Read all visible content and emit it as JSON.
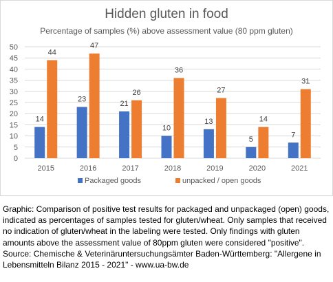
{
  "chart_data": {
    "type": "bar",
    "title": "Hidden gluten in food",
    "subtitle": "Percentage of samples (%) above assessment value (80 ppm gluten)",
    "categories": [
      "2015",
      "2016",
      "2017",
      "2018",
      "2019",
      "2020",
      "2021"
    ],
    "series": [
      {
        "name": "Packaged goods",
        "color": "#4472c4",
        "values": [
          14,
          23,
          21,
          10,
          13,
          5,
          7
        ]
      },
      {
        "name": "unpacked / open goods",
        "color": "#ed7d31",
        "values": [
          44,
          47,
          26,
          36,
          27,
          14,
          31
        ]
      }
    ],
    "ylim": [
      0,
      50
    ],
    "yticks": [
      0,
      5,
      10,
      15,
      20,
      25,
      30,
      35,
      40,
      45,
      50
    ],
    "grid": true,
    "legend": "bottom",
    "data_labels": true
  },
  "caption": "Graphic: Comparison of positive test results for packaged and unpackaged (open) goods, indicated as percentages of samples tested for gluten/wheat. Only samples that received no indication of gluten/wheat in the labeling were tested. Only findings with gluten amounts above the assessment value of 80ppm gluten were considered \"positive\". Source: Chemische & Veterinäruntersuchungsämter Baden-Württemberg: \"Allergene in Lebensmitteln Bilanz 2015 - 2021\" - www.ua-bw.de"
}
